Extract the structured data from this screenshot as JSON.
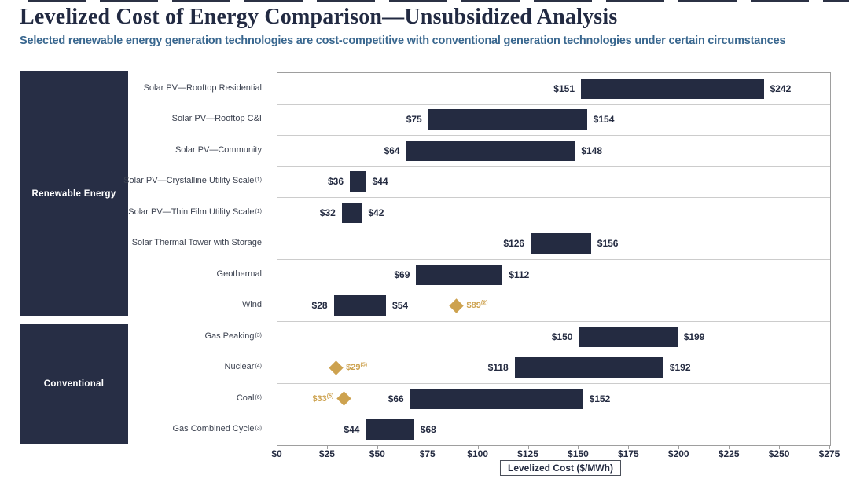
{
  "header": {
    "title": "Levelized Cost of Energy Comparison—Unsubsidized Analysis",
    "subtitle": "Selected renewable energy generation technologies are cost-competitive with conventional generation technologies under certain circumstances"
  },
  "groups": [
    {
      "label": "Renewable Energy"
    },
    {
      "label": "Conventional"
    }
  ],
  "axis": {
    "title": "Levelized Cost ($/MWh)",
    "min": 0,
    "max": 275,
    "step": 25,
    "tick_labels": [
      "$0",
      "$25",
      "$50",
      "$75",
      "$100",
      "$125",
      "$150",
      "$175",
      "$200",
      "$225",
      "$250",
      "$275"
    ]
  },
  "colors": {
    "bar_navy": "#242b41",
    "sidebar_navy": "#272e45",
    "diamond_gold": "#cda24f",
    "subtitle_blue": "#39678f",
    "title_navy": "#222a42"
  },
  "chart_data": {
    "type": "bar",
    "variant": "horizontal-range",
    "title": "Levelized Cost of Energy Comparison—Unsubsidized Analysis",
    "xlabel": "Levelized Cost ($/MWh)",
    "xlim": [
      0,
      275
    ],
    "grid": false,
    "rows": [
      {
        "group": "Renewable Energy",
        "label": "Solar PV—Rooftop Residential",
        "sup": "",
        "min": 151,
        "max": 242
      },
      {
        "group": "Renewable Energy",
        "label": "Solar PV—Rooftop C&I",
        "sup": "",
        "min": 75,
        "max": 154
      },
      {
        "group": "Renewable Energy",
        "label": "Solar PV—Community",
        "sup": "",
        "min": 64,
        "max": 148
      },
      {
        "group": "Renewable Energy",
        "label": "Solar PV—Crystalline Utility Scale",
        "sup": "(1)",
        "min": 36,
        "max": 44
      },
      {
        "group": "Renewable Energy",
        "label": "Solar PV—Thin Film Utility Scale",
        "sup": "(1)",
        "min": 32,
        "max": 42
      },
      {
        "group": "Renewable Energy",
        "label": "Solar Thermal Tower with Storage",
        "sup": "",
        "min": 126,
        "max": 156
      },
      {
        "group": "Renewable Energy",
        "label": "Geothermal",
        "sup": "",
        "min": 69,
        "max": 112
      },
      {
        "group": "Renewable Energy",
        "label": "Wind",
        "sup": "",
        "min": 28,
        "max": 54,
        "diamond": {
          "value": 89,
          "label": "$89",
          "sup": "(2)",
          "label_side": "right"
        }
      },
      {
        "group": "Conventional",
        "label": "Gas Peaking",
        "sup": "(3)",
        "min": 150,
        "max": 199
      },
      {
        "group": "Conventional",
        "label": "Nuclear",
        "sup": "(4)",
        "min": 118,
        "max": 192,
        "diamond": {
          "value": 29,
          "label": "$29",
          "sup": "(5)",
          "label_side": "right"
        }
      },
      {
        "group": "Conventional",
        "label": "Coal",
        "sup": "(6)",
        "min": 66,
        "max": 152,
        "diamond": {
          "value": 33,
          "label": "$33",
          "sup": "(5)",
          "label_side": "left"
        }
      },
      {
        "group": "Conventional",
        "label": "Gas Combined Cycle",
        "sup": "(3)",
        "min": 44,
        "max": 68
      }
    ]
  }
}
